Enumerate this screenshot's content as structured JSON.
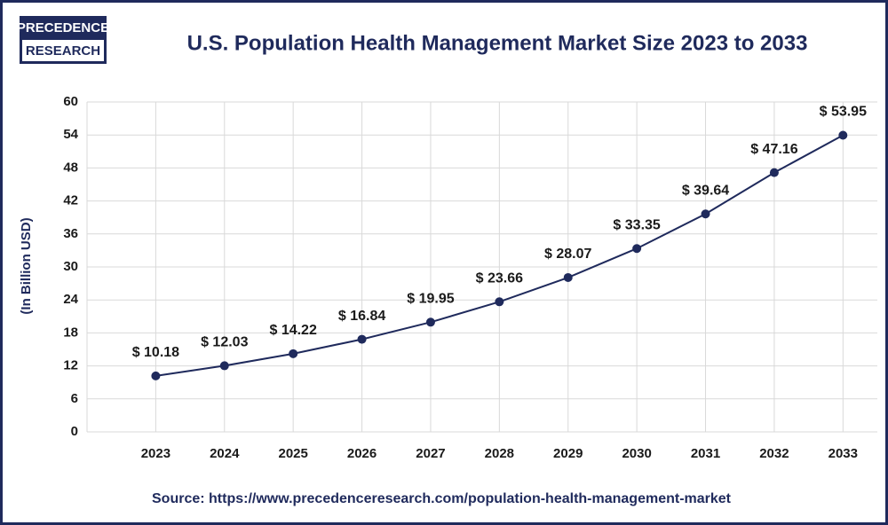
{
  "logo": [
    "PRECEDENCE",
    "RESEARCH"
  ],
  "chart_data": {
    "type": "line",
    "title": "U.S. Population Health Management Market Size 2023 to 2033",
    "y_label": "(In Billion USD)",
    "source": "Source: https://www.precedenceresearch.com/population-health-management-market",
    "categories": [
      "2023",
      "2024",
      "2025",
      "2026",
      "2027",
      "2028",
      "2029",
      "2030",
      "2031",
      "2032",
      "2033"
    ],
    "values": [
      10.18,
      12.03,
      14.22,
      16.84,
      19.95,
      23.66,
      28.07,
      33.35,
      39.64,
      47.16,
      53.95
    ],
    "value_labels": [
      "$ 10.18",
      "$ 12.03",
      "$ 14.22",
      "$ 16.84",
      "$ 19.95",
      "$ 23.66",
      "$ 28.07",
      "$ 33.35",
      "$ 39.64",
      "$ 47.16",
      "$ 53.95"
    ],
    "color": "#1f2a5c",
    "ylim": [
      0,
      60
    ],
    "yticks": [
      0,
      6,
      12,
      18,
      24,
      30,
      36,
      42,
      48,
      54,
      60
    ],
    "grid": true
  }
}
